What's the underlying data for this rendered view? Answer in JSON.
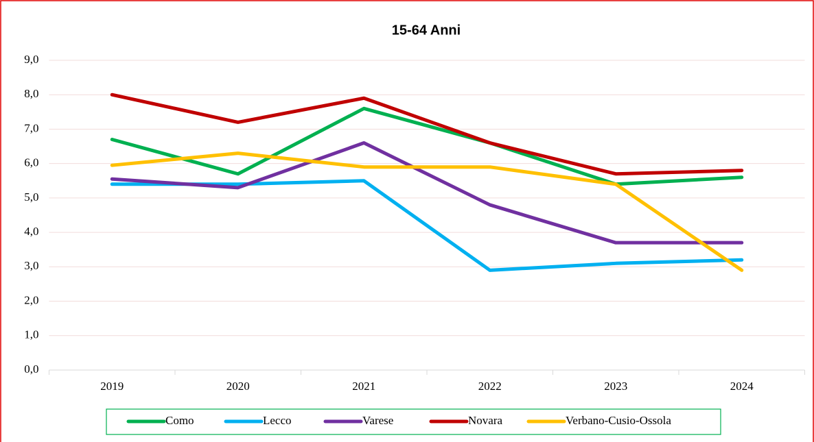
{
  "chart_data": {
    "type": "line",
    "title": "15-64 Anni",
    "categories": [
      "2019",
      "2020",
      "2021",
      "2022",
      "2023",
      "2024"
    ],
    "series": [
      {
        "name": "Como",
        "color": "#00b050",
        "values": [
          6.7,
          5.7,
          7.6,
          6.6,
          5.4,
          5.6
        ]
      },
      {
        "name": "Lecco",
        "color": "#00b0f0",
        "values": [
          5.4,
          5.4,
          5.5,
          2.9,
          3.1,
          3.2
        ]
      },
      {
        "name": "Varese",
        "color": "#7030a0",
        "values": [
          5.55,
          5.3,
          6.6,
          4.8,
          3.7,
          3.7
        ]
      },
      {
        "name": "Novara",
        "color": "#c00000",
        "values": [
          8.0,
          7.2,
          7.9,
          6.6,
          5.7,
          5.8
        ]
      },
      {
        "name": "Verbano-Cusio-Ossola",
        "color": "#ffc000",
        "values": [
          5.95,
          6.3,
          5.9,
          5.9,
          5.4,
          2.9
        ]
      }
    ],
    "ylim": [
      0,
      9
    ],
    "yticks": [
      {
        "value": 0,
        "label": "0,0"
      },
      {
        "value": 1,
        "label": "1,0"
      },
      {
        "value": 2,
        "label": "2,0"
      },
      {
        "value": 3,
        "label": "3,0"
      },
      {
        "value": 4,
        "label": "4,0"
      },
      {
        "value": 5,
        "label": "5,0"
      },
      {
        "value": 6,
        "label": "6,0"
      },
      {
        "value": 7,
        "label": "7,0"
      },
      {
        "value": 8,
        "label": "8,0"
      },
      {
        "value": 9,
        "label": "9,0"
      }
    ],
    "grid": true,
    "legend": "bottom"
  }
}
